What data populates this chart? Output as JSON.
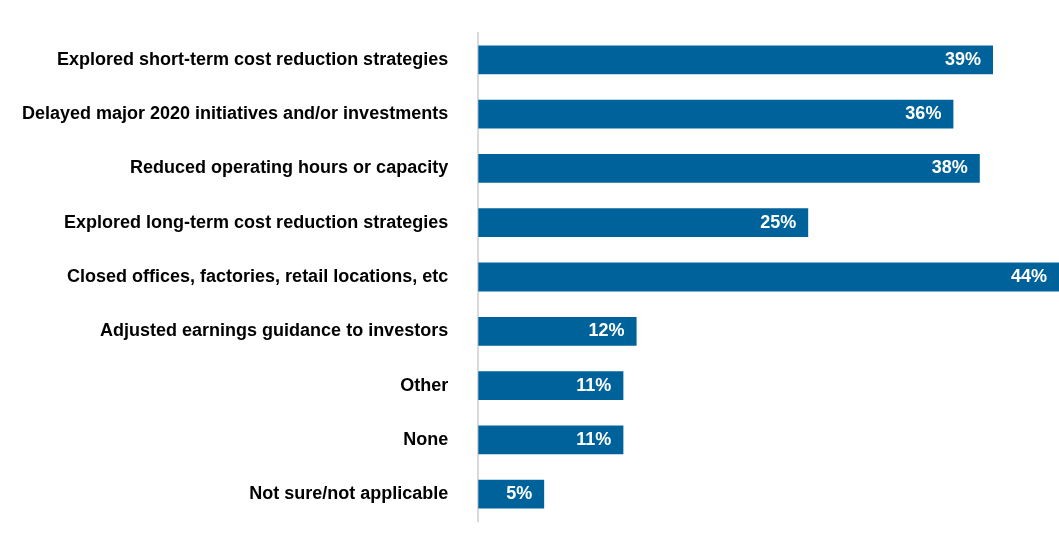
{
  "chart_data": {
    "type": "bar",
    "orientation": "horizontal",
    "categories": [
      "Explored short-term cost reduction strategies",
      "Delayed major 2020 initiatives and/or investments",
      "Reduced operating hours or capacity",
      "Explored long-term cost reduction strategies",
      "Closed offices, factories, retail locations, etc",
      "Adjusted earnings guidance to investors",
      "Other",
      "None",
      "Not sure/not applicable"
    ],
    "values": [
      39,
      36,
      38,
      25,
      44,
      12,
      11,
      11,
      5
    ],
    "value_labels": [
      "39%",
      "36%",
      "38%",
      "25%",
      "44%",
      "12%",
      "11%",
      "11%",
      "5%"
    ],
    "color": "#00629b",
    "legend": false,
    "tick_labels": "y"
  }
}
